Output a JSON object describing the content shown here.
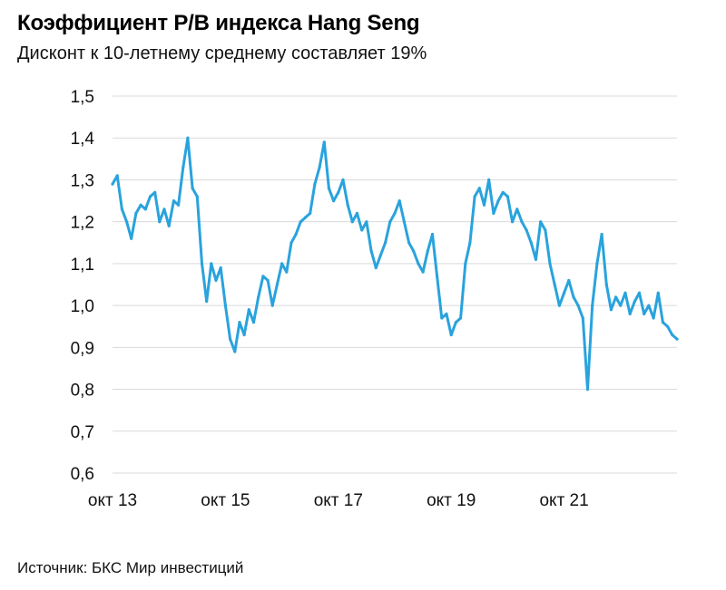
{
  "title": "Коэффициент P/B индекса Hang Seng",
  "subtitle": "Дисконт к 10-летнему среднему составляет 19%",
  "source": "Источник: БКС Мир инвестиций",
  "colors": {
    "line": "#29a3dd",
    "grid": "#d9d9d9",
    "text": "#111111"
  },
  "chart_data": {
    "type": "line",
    "title": "Коэффициент P/B индекса Hang Seng",
    "subtitle": "Дисконт к 10-летнему среднему составляет 19%",
    "xlabel": "",
    "ylabel": "",
    "ylim": [
      0.6,
      1.5
    ],
    "yticks": [
      0.6,
      0.7,
      0.8,
      0.9,
      1.0,
      1.1,
      1.2,
      1.3,
      1.4,
      1.5
    ],
    "ytick_labels": [
      "0,6",
      "0,7",
      "0,8",
      "0,9",
      "1,0",
      "1,1",
      "1,2",
      "1,3",
      "1,4",
      "1,5"
    ],
    "xticks": [
      "2013-10",
      "2015-10",
      "2017-10",
      "2019-10",
      "2021-10"
    ],
    "xtick_labels": [
      "окт 13",
      "окт 15",
      "окт 17",
      "окт 19",
      "окт 21"
    ],
    "xlim": [
      "2013-10",
      "2023-10"
    ],
    "grid": true,
    "series": [
      {
        "name": "",
        "x": [
          "2013-10",
          "2013-11",
          "2013-12",
          "2014-01",
          "2014-02",
          "2014-03",
          "2014-04",
          "2014-05",
          "2014-06",
          "2014-07",
          "2014-08",
          "2014-09",
          "2014-10",
          "2014-11",
          "2014-12",
          "2015-01",
          "2015-02",
          "2015-03",
          "2015-04",
          "2015-05",
          "2015-06",
          "2015-07",
          "2015-08",
          "2015-09",
          "2015-10",
          "2015-11",
          "2015-12",
          "2016-01",
          "2016-02",
          "2016-03",
          "2016-04",
          "2016-05",
          "2016-06",
          "2016-07",
          "2016-08",
          "2016-09",
          "2016-10",
          "2016-11",
          "2016-12",
          "2017-01",
          "2017-02",
          "2017-03",
          "2017-04",
          "2017-05",
          "2017-06",
          "2017-07",
          "2017-08",
          "2017-09",
          "2017-10",
          "2017-11",
          "2017-12",
          "2018-01",
          "2018-02",
          "2018-03",
          "2018-04",
          "2018-05",
          "2018-06",
          "2018-07",
          "2018-08",
          "2018-09",
          "2018-10",
          "2018-11",
          "2018-12",
          "2019-01",
          "2019-02",
          "2019-03",
          "2019-04",
          "2019-05",
          "2019-06",
          "2019-07",
          "2019-08",
          "2019-09",
          "2019-10",
          "2019-11",
          "2019-12",
          "2020-01",
          "2020-02",
          "2020-03",
          "2020-04",
          "2020-05",
          "2020-06",
          "2020-07",
          "2020-08",
          "2020-09",
          "2020-10",
          "2020-11",
          "2020-12",
          "2021-01",
          "2021-02",
          "2021-03",
          "2021-04",
          "2021-05",
          "2021-06",
          "2021-07",
          "2021-08",
          "2021-09",
          "2021-10",
          "2021-11",
          "2021-12",
          "2022-01",
          "2022-02",
          "2022-03",
          "2022-04",
          "2022-05",
          "2022-06",
          "2022-07",
          "2022-08",
          "2022-09",
          "2022-10",
          "2022-11",
          "2022-12",
          "2023-01",
          "2023-02",
          "2023-03",
          "2023-04",
          "2023-05",
          "2023-06",
          "2023-07",
          "2023-08",
          "2023-09",
          "2023-10"
        ],
        "values": [
          1.29,
          1.31,
          1.23,
          1.2,
          1.16,
          1.22,
          1.24,
          1.23,
          1.26,
          1.27,
          1.2,
          1.23,
          1.19,
          1.25,
          1.24,
          1.33,
          1.4,
          1.28,
          1.26,
          1.1,
          1.01,
          1.1,
          1.06,
          1.09,
          1.0,
          0.92,
          0.89,
          0.96,
          0.93,
          0.99,
          0.96,
          1.02,
          1.07,
          1.06,
          1.0,
          1.05,
          1.1,
          1.08,
          1.15,
          1.17,
          1.2,
          1.21,
          1.22,
          1.29,
          1.33,
          1.39,
          1.28,
          1.25,
          1.27,
          1.3,
          1.24,
          1.2,
          1.22,
          1.18,
          1.2,
          1.13,
          1.09,
          1.12,
          1.15,
          1.2,
          1.22,
          1.25,
          1.2,
          1.15,
          1.13,
          1.1,
          1.08,
          1.13,
          1.17,
          1.07,
          0.97,
          0.98,
          0.93,
          0.96,
          0.97,
          1.1,
          1.15,
          1.26,
          1.28,
          1.24,
          1.3,
          1.22,
          1.25,
          1.27,
          1.26,
          1.2,
          1.23,
          1.2,
          1.18,
          1.15,
          1.11,
          1.2,
          1.18,
          1.1,
          1.05,
          1.0,
          1.03,
          1.06,
          1.02,
          1.0,
          0.97,
          0.8,
          1.0,
          1.1,
          1.17,
          1.05,
          0.99,
          1.02,
          1.0,
          1.03,
          0.98,
          1.01,
          1.03,
          0.98,
          1.0,
          0.97,
          1.03,
          0.96,
          0.95,
          0.93,
          0.92
        ]
      }
    ]
  }
}
